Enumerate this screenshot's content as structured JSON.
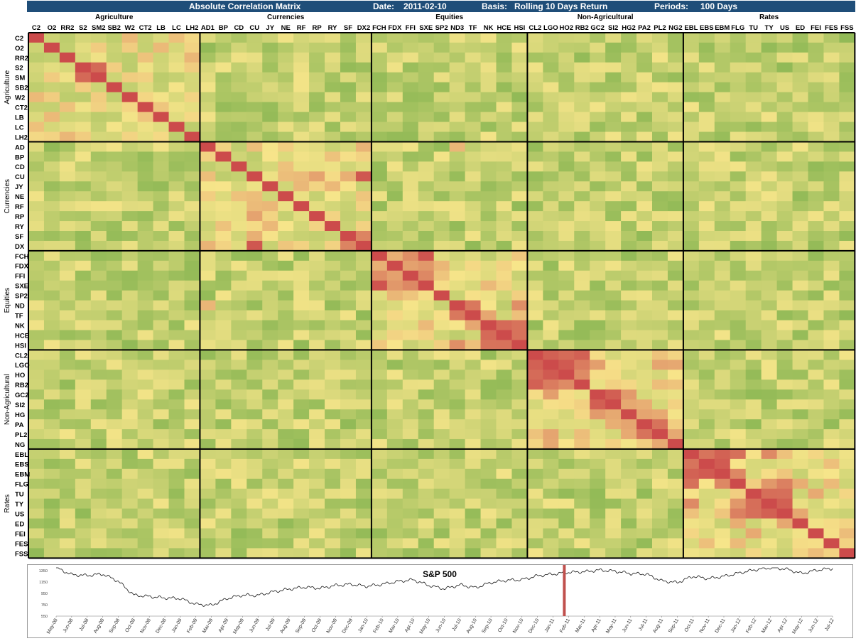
{
  "header": {
    "title": "Absolute Correlation Matrix",
    "date_label": "Date:",
    "date_value": "2011-02-10",
    "basis_label": "Basis:",
    "basis_value": "Rolling 10 Days Return",
    "periods_label": "Periods:",
    "periods_value": "100 Days"
  },
  "colors": {
    "header_bg": "#1f4e79",
    "high": "#cc4b4b",
    "mid": "#f7e58a",
    "low": "#7fb24d",
    "sp_marker": "#c0504d"
  },
  "chart_data": [
    {
      "type": "heatmap",
      "title": "Absolute Correlation Matrix",
      "groups": [
        {
          "name": "Agriculture",
          "labels": [
            "C2",
            "O2",
            "RR2",
            "S2",
            "SM2",
            "SB2",
            "W2",
            "CT2",
            "LB",
            "LC",
            "LH2"
          ]
        },
        {
          "name": "Currencies",
          "labels": [
            "AD1",
            "BP",
            "CD",
            "CU",
            "JY",
            "NE",
            "RF",
            "RP",
            "RY",
            "SF",
            "DX2"
          ]
        },
        {
          "name": "Equities",
          "labels": [
            "FCH",
            "FDX",
            "FFI",
            "SXE",
            "SP2",
            "ND3",
            "TF",
            "NK",
            "HCE",
            "HSI"
          ]
        },
        {
          "name": "Non-Agricultural",
          "labels": [
            "CL2",
            "LGO",
            "HO2",
            "RB2",
            "GC2",
            "SI2",
            "HG2",
            "PA2",
            "PL2",
            "NG2"
          ]
        },
        {
          "name": "Rates",
          "labels": [
            "EBL",
            "EBS",
            "EBM",
            "FLG",
            "TU",
            "TY",
            "US",
            "ED",
            "FEI",
            "FES",
            "FSS"
          ]
        }
      ],
      "row_labels": [
        "C2",
        "O2",
        "RR2",
        "S2",
        "SM",
        "SB2",
        "W2",
        "CT2",
        "LB",
        "LC",
        "LH2",
        "AD",
        "BP",
        "CD",
        "CU",
        "JY",
        "NE",
        "RF",
        "RP",
        "RY",
        "SF",
        "DX",
        "FCH",
        "FDX",
        "FFI",
        "SXE",
        "SP2",
        "ND",
        "TF",
        "NK",
        "HCE",
        "HSI",
        "CL2",
        "LGO",
        "HO",
        "RB2",
        "GC2",
        "SI2",
        "HG",
        "PA",
        "PL2",
        "NG",
        "EBL",
        "EBS",
        "EBM",
        "FLG",
        "TU",
        "TY",
        "US",
        "ED",
        "FEI",
        "FES",
        "FSS"
      ],
      "value_range": [
        0,
        1
      ],
      "blocks_approx": [
        {
          "group": "Agriculture",
          "within": 0.45,
          "notes": "S2-SM2 high (0.9)"
        },
        {
          "group": "Currencies",
          "within": 0.45,
          "notes": "CU-DX2 high (0.9); AD, SF, DX2 moderate"
        },
        {
          "group": "Equities",
          "within": 0.45,
          "notes": "FCH-SXE 0.9, ND3-TF 0.85, NK-HCE-HSI 0.85"
        },
        {
          "group": "Non-Agricultural",
          "within": 0.55,
          "notes": "CL2-LGO-HO2-RB2 0.85, GC2-SI2 0.9"
        },
        {
          "group": "Rates",
          "within": 0.5,
          "notes": "EBL-EBS-EBM 0.85, TU-TY-US 0.9"
        }
      ]
    },
    {
      "type": "line",
      "title": "S&P 500",
      "y_ticks": [
        "1350",
        "1150",
        "950",
        "750",
        "550"
      ],
      "ylim": [
        550,
        1350
      ],
      "x_ticks": [
        "May-08",
        "Jun-08",
        "Jul-08",
        "Aug-08",
        "Sep-08",
        "Oct-08",
        "Nov-08",
        "Dec-08",
        "Jan-09",
        "Feb-09",
        "Mar-09",
        "Apr-09",
        "May-09",
        "Jun-09",
        "Jul-09",
        "Aug-09",
        "Sep-09",
        "Oct-09",
        "Nov-09",
        "Dec-09",
        "Jan-10",
        "Feb-10",
        "Mar-10",
        "Apr-10",
        "May-10",
        "Jun-10",
        "Jul-10",
        "Aug-10",
        "Sep-10",
        "Oct-10",
        "Nov-10",
        "Dec-10",
        "Jan-11",
        "Feb-11",
        "Mar-11",
        "Apr-11",
        "May-11",
        "Jun-11",
        "Jul-11",
        "Aug-11",
        "Sep-11",
        "Oct-11",
        "Nov-11",
        "Dec-11",
        "Jan-12",
        "Feb-12",
        "Mar-12",
        "Apr-12",
        "May-12",
        "Jun-12",
        "Jul-12"
      ],
      "monthly_values": [
        1400,
        1280,
        1265,
        1290,
        1165,
        920,
        895,
        870,
        860,
        760,
        740,
        860,
        920,
        915,
        980,
        1025,
        1060,
        1040,
        1090,
        1110,
        1075,
        1110,
        1160,
        1190,
        1090,
        1030,
        1100,
        1050,
        1140,
        1180,
        1190,
        1260,
        1290,
        1320,
        1330,
        1360,
        1340,
        1300,
        1290,
        1170,
        1140,
        1250,
        1210,
        1250,
        1310,
        1365,
        1400,
        1380,
        1300,
        1360,
        1390
      ],
      "marker_x": "Feb-11"
    }
  ]
}
